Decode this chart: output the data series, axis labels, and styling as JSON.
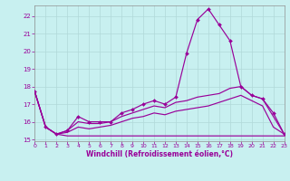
{
  "xlabel": "Windchill (Refroidissement éolien,°C)",
  "background_color": "#c8f0f0",
  "grid_color": "#b0d8d8",
  "line_color": "#990099",
  "xlim": [
    0,
    23
  ],
  "ylim": [
    14.9,
    22.6
  ],
  "yticks": [
    15,
    16,
    17,
    18,
    19,
    20,
    21,
    22
  ],
  "xticks": [
    0,
    1,
    2,
    3,
    4,
    5,
    6,
    7,
    8,
    9,
    10,
    11,
    12,
    13,
    14,
    15,
    16,
    17,
    18,
    19,
    20,
    21,
    22,
    23
  ],
  "curves": [
    {
      "x": [
        0,
        1,
        2,
        3,
        4,
        5,
        6,
        7,
        8,
        9,
        10,
        11,
        12,
        13,
        14,
        15,
        16,
        17,
        18,
        19,
        20,
        21,
        22,
        23
      ],
      "y": [
        17.7,
        15.7,
        15.3,
        15.5,
        16.3,
        16.0,
        16.0,
        16.0,
        16.5,
        16.7,
        17.0,
        17.2,
        17.0,
        17.4,
        19.9,
        21.8,
        22.4,
        21.5,
        20.6,
        18.0,
        17.5,
        17.3,
        16.5,
        15.3
      ],
      "marker": true
    },
    {
      "x": [
        0,
        1,
        2,
        3,
        4,
        5,
        6,
        7,
        8,
        9,
        10,
        11,
        12,
        13,
        14,
        15,
        16,
        17,
        18,
        19,
        20,
        21,
        22,
        23
      ],
      "y": [
        17.7,
        15.7,
        15.3,
        15.5,
        16.0,
        15.9,
        15.9,
        16.0,
        16.3,
        16.5,
        16.7,
        16.9,
        16.8,
        17.1,
        17.2,
        17.4,
        17.5,
        17.6,
        17.9,
        18.0,
        17.5,
        17.3,
        16.3,
        15.3
      ],
      "marker": false
    },
    {
      "x": [
        0,
        1,
        2,
        3,
        4,
        5,
        6,
        7,
        8,
        9,
        10,
        11,
        12,
        13,
        14,
        15,
        16,
        17,
        18,
        19,
        20,
        21,
        22,
        23
      ],
      "y": [
        17.7,
        15.7,
        15.3,
        15.4,
        15.7,
        15.6,
        15.7,
        15.8,
        16.0,
        16.2,
        16.3,
        16.5,
        16.4,
        16.6,
        16.7,
        16.8,
        16.9,
        17.1,
        17.3,
        17.5,
        17.2,
        16.9,
        15.7,
        15.3
      ],
      "marker": false
    },
    {
      "x": [
        0,
        1,
        2,
        3,
        4,
        5,
        6,
        7,
        8,
        9,
        10,
        11,
        12,
        13,
        14,
        15,
        16,
        17,
        18,
        19,
        20,
        21,
        22,
        23
      ],
      "y": [
        17.7,
        15.7,
        15.3,
        15.2,
        15.2,
        15.2,
        15.2,
        15.2,
        15.2,
        15.2,
        15.2,
        15.2,
        15.2,
        15.2,
        15.2,
        15.2,
        15.2,
        15.2,
        15.2,
        15.2,
        15.2,
        15.2,
        15.2,
        15.2
      ],
      "marker": false
    }
  ]
}
